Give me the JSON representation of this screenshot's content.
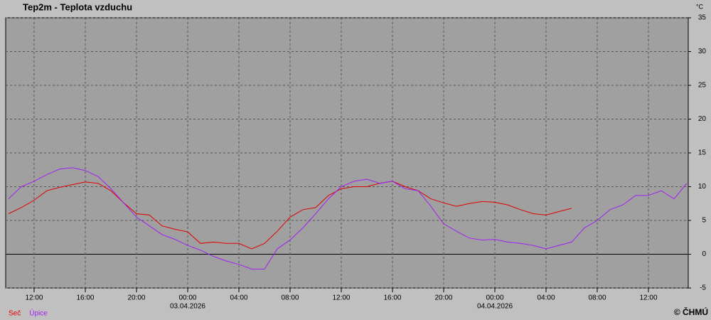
{
  "chart_data": {
    "type": "line",
    "title": "Tep2m - Teplota vzduchu",
    "y_unit": "°C",
    "copyright": "© ČHMÚ",
    "x": [
      10,
      11,
      12,
      13,
      14,
      15,
      16,
      17,
      18,
      19,
      20,
      21,
      22,
      23,
      24,
      25,
      26,
      27,
      28,
      29,
      30,
      31,
      32,
      33,
      34,
      35,
      36,
      37,
      38,
      39,
      40,
      41,
      42,
      43,
      44,
      45,
      46,
      47,
      48,
      49,
      50,
      51,
      52,
      53,
      54,
      55,
      56,
      57,
      58,
      59,
      60,
      61,
      62,
      63
    ],
    "series": [
      {
        "name": "Seč",
        "color": "#e00000",
        "values": [
          6.0,
          6.9,
          8.0,
          9.4,
          9.9,
          10.3,
          10.7,
          10.5,
          9.4,
          7.6,
          6.0,
          5.8,
          4.2,
          3.7,
          3.3,
          1.6,
          1.8,
          1.6,
          1.6,
          0.8,
          1.6,
          3.4,
          5.5,
          6.6,
          6.9,
          8.7,
          9.7,
          10.0,
          10.0,
          10.5,
          10.8,
          10.0,
          9.4,
          8.2,
          7.6,
          7.1,
          7.5,
          7.8,
          7.7,
          7.3,
          6.6,
          6.0,
          5.8,
          6.3,
          6.8,
          null,
          null,
          null,
          null,
          null,
          null,
          null,
          null,
          null
        ]
      },
      {
        "name": "Úpice",
        "color": "#a020f0",
        "values": [
          8.2,
          10.0,
          10.8,
          11.8,
          12.6,
          12.8,
          12.4,
          11.5,
          9.7,
          7.6,
          5.5,
          4.2,
          2.9,
          2.2,
          1.3,
          0.6,
          -0.3,
          -1.0,
          -1.5,
          -2.2,
          -2.2,
          0.8,
          2.1,
          3.9,
          6.0,
          8.2,
          10.0,
          10.8,
          11.1,
          10.5,
          10.8,
          9.7,
          9.4,
          7.1,
          4.5,
          3.4,
          2.4,
          2.1,
          2.2,
          1.8,
          1.6,
          1.3,
          0.8,
          1.3,
          1.8,
          3.9,
          5.0,
          6.6,
          7.3,
          8.7,
          8.7,
          9.4,
          8.2,
          10.5
        ]
      }
    ],
    "xlim": [
      9.78,
      63.11
    ],
    "xticks": [
      {
        "value": 12,
        "label": "12:00"
      },
      {
        "value": 16,
        "label": "16:00"
      },
      {
        "value": 20,
        "label": "20:00"
      },
      {
        "value": 24,
        "label": "00:00"
      },
      {
        "value": 28,
        "label": "04:00"
      },
      {
        "value": 32,
        "label": "08:00"
      },
      {
        "value": 36,
        "label": "12:00"
      },
      {
        "value": 40,
        "label": "16:00"
      },
      {
        "value": 44,
        "label": "20:00"
      },
      {
        "value": 48,
        "label": "00:00"
      },
      {
        "value": 52,
        "label": "04:00"
      },
      {
        "value": 56,
        "label": "08:00"
      },
      {
        "value": 60,
        "label": "12:00"
      }
    ],
    "x_date_labels": [
      {
        "value": 24,
        "label": "03.04.2026"
      },
      {
        "value": 48,
        "label": "04.04.2026"
      }
    ],
    "ylim": [
      -5,
      35
    ],
    "yticks": [
      -5,
      0,
      5,
      10,
      15,
      20,
      25,
      30,
      35
    ],
    "grid": true
  }
}
